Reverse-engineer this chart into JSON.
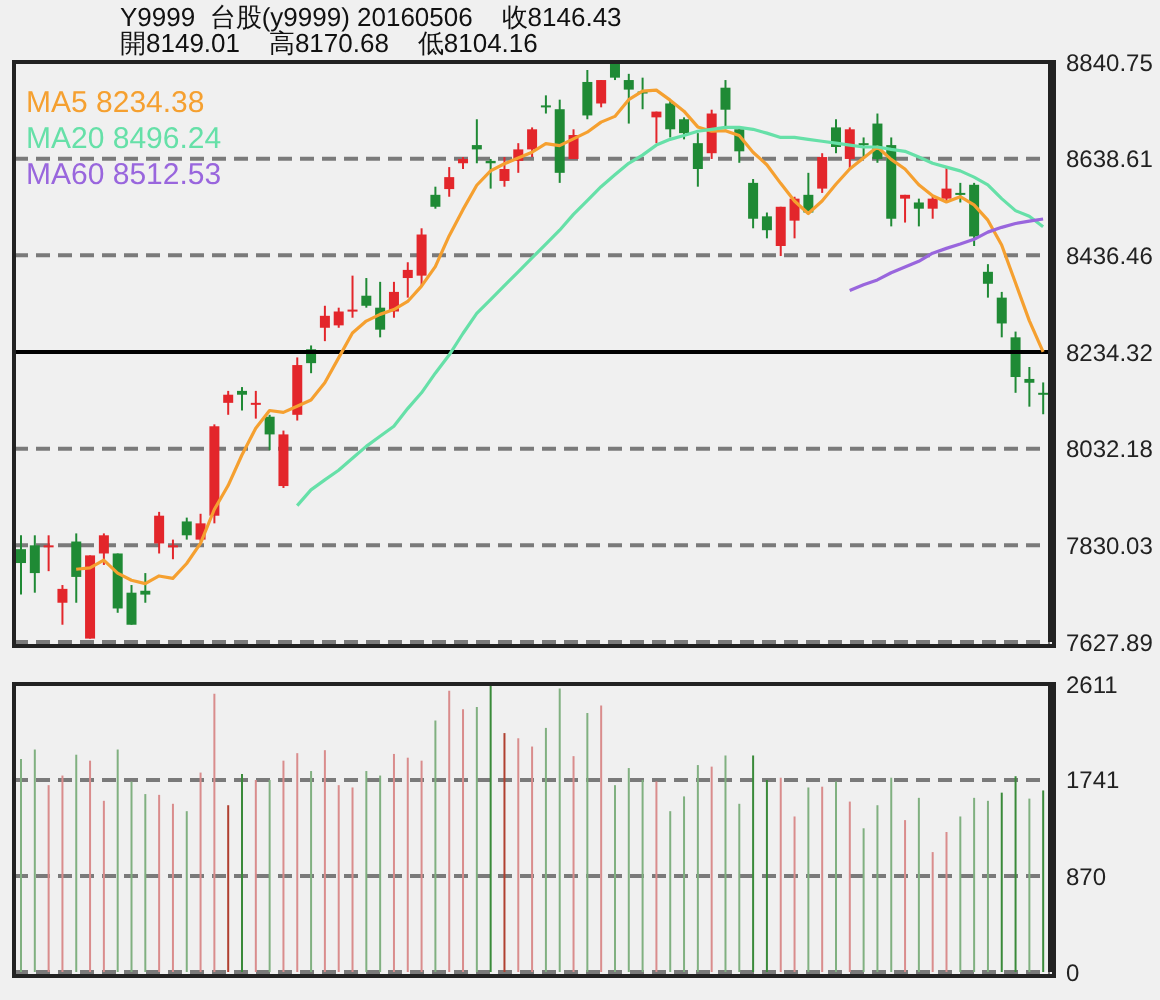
{
  "chart_data": [
    {
      "type": "candlestick",
      "title": "Y9999  台股(y9999) 20160506    收8146.43",
      "subtitle": "開8149.01    高8170.68    低8104.16",
      "categories": [
        null,
        null,
        null,
        null,
        null,
        null,
        null,
        null,
        null,
        null,
        null,
        null,
        null,
        null,
        null,
        null,
        null,
        null,
        null,
        null,
        null,
        null,
        null,
        null,
        null,
        null,
        null,
        null,
        null,
        null,
        null,
        null,
        null,
        null,
        null,
        null,
        null,
        null,
        null,
        null,
        null,
        null,
        null,
        null,
        null,
        null,
        null,
        null,
        null,
        null,
        null,
        null,
        null,
        null,
        null,
        null,
        null,
        null,
        null,
        null,
        null,
        null,
        null,
        null,
        null,
        null,
        null,
        null,
        null,
        null,
        null,
        null,
        null,
        null,
        null
      ],
      "ohlc": [
        [
          7822,
          7851,
          7727,
          7793
        ],
        [
          7830,
          7851,
          7731,
          7772
        ],
        [
          7826,
          7851,
          7776,
          7830
        ],
        [
          7710,
          7747,
          7664,
          7739
        ],
        [
          7838,
          7855,
          7710,
          7764
        ],
        [
          7635,
          7809,
          7635,
          7809
        ],
        [
          7813,
          7855,
          7789,
          7851
        ],
        [
          7813,
          7813,
          7689,
          7698
        ],
        [
          7731,
          7747,
          7664,
          7664
        ],
        [
          7735,
          7772,
          7710,
          7727
        ],
        [
          7834,
          7900,
          7813,
          7892
        ],
        [
          7826,
          7842,
          7801,
          7830
        ],
        [
          7880,
          7888,
          7842,
          7851
        ],
        [
          7842,
          7896,
          7838,
          7876
        ],
        [
          7892,
          8083,
          7876,
          8079
        ],
        [
          8128,
          8153,
          8103,
          8145
        ],
        [
          8153,
          8161,
          8112,
          8145
        ],
        [
          8124,
          8153,
          8095,
          8128
        ],
        [
          8099,
          8103,
          8029,
          8062
        ],
        [
          7954,
          8070,
          7950,
          8062
        ],
        [
          8103,
          8223,
          8091,
          8207
        ],
        [
          8240,
          8248,
          8190,
          8211
        ],
        [
          8285,
          8331,
          8257,
          8310
        ],
        [
          8290,
          8327,
          8285,
          8319
        ],
        [
          8319,
          8394,
          8306,
          8323
        ],
        [
          8352,
          8389,
          8327,
          8331
        ],
        [
          8327,
          8381,
          8265,
          8281
        ],
        [
          8319,
          8381,
          8306,
          8360
        ],
        [
          8389,
          8422,
          8348,
          8406
        ],
        [
          8394,
          8493,
          8373,
          8480
        ],
        [
          8563,
          8580,
          8534,
          8538
        ],
        [
          8575,
          8621,
          8559,
          8600
        ],
        [
          8629,
          8642,
          8617,
          8638
        ],
        [
          8667,
          8721,
          8629,
          8658
        ],
        [
          8634,
          8638,
          8576,
          8629
        ],
        [
          8592,
          8642,
          8580,
          8617
        ],
        [
          8634,
          8671,
          8609,
          8658
        ],
        [
          8658,
          8704,
          8642,
          8700
        ],
        [
          8750,
          8771,
          8733,
          8746
        ],
        [
          8742,
          8762,
          8588,
          8609
        ],
        [
          8638,
          8700,
          8638,
          8688
        ],
        [
          8799,
          8824,
          8721,
          8729
        ],
        [
          8754,
          8803,
          8746,
          8803
        ],
        [
          8837,
          8838,
          8803,
          8808
        ],
        [
          8803,
          8816,
          8712,
          8783
        ],
        [
          8779,
          8808,
          8742,
          8775
        ],
        [
          8725,
          8737,
          8671,
          8737
        ],
        [
          8754,
          8762,
          8683,
          8700
        ],
        [
          8721,
          8725,
          8679,
          8692
        ],
        [
          8671,
          8692,
          8580,
          8617
        ],
        [
          8650,
          8741,
          8638,
          8733
        ],
        [
          8787,
          8803,
          8700,
          8741
        ],
        [
          8700,
          8700,
          8630,
          8654
        ],
        [
          8588,
          8596,
          8493,
          8513
        ],
        [
          8518,
          8526,
          8472,
          8489
        ],
        [
          8456,
          8538,
          8435,
          8538
        ],
        [
          8509,
          8559,
          8472,
          8555
        ],
        [
          8563,
          8609,
          8526,
          8526
        ],
        [
          8576,
          8650,
          8567,
          8642
        ],
        [
          8704,
          8721,
          8650,
          8663
        ],
        [
          8638,
          8704,
          8617,
          8700
        ],
        [
          8671,
          8683,
          8642,
          8667
        ],
        [
          8712,
          8733,
          8630,
          8638
        ],
        [
          8667,
          8683,
          8497,
          8513
        ],
        [
          8555,
          8563,
          8505,
          8563
        ],
        [
          8547,
          8555,
          8497,
          8534
        ],
        [
          8534,
          8559,
          8513,
          8555
        ],
        [
          8555,
          8621,
          8547,
          8576
        ],
        [
          8567,
          8588,
          8547,
          8563
        ],
        [
          8584,
          8588,
          8456,
          8476
        ],
        [
          8402,
          8418,
          8348,
          8377
        ],
        [
          8348,
          8360,
          8265,
          8294
        ],
        [
          8265,
          8277,
          8149,
          8182
        ],
        [
          8178,
          8203,
          8120,
          8170
        ],
        [
          8149.01,
          8170.68,
          8104.16,
          8146.43
        ]
      ],
      "colors": [
        "#1f8a35",
        "#1f8a35",
        "#e3262b",
        "#e3262b",
        "#1f8a35",
        "#e3262b",
        "#e3262b",
        "#1f8a35",
        "#1f8a35",
        "#1f8a35",
        "#e3262b",
        "#e3262b",
        "#1f8a35",
        "#e3262b",
        "#e3262b",
        "#e3262b",
        "#1f8a35",
        "#e3262b",
        "#1f8a35",
        "#e3262b",
        "#e3262b",
        "#1f8a35",
        "#e3262b",
        "#e3262b",
        "#e3262b",
        "#1f8a35",
        "#1f8a35",
        "#e3262b",
        "#e3262b",
        "#e3262b",
        "#1f8a35",
        "#e3262b",
        "#e3262b",
        "#1f8a35",
        "#1f8a35",
        "#e3262b",
        "#e3262b",
        "#e3262b",
        "#1f8a35",
        "#1f8a35",
        "#e3262b",
        "#1f8a35",
        "#e3262b",
        "#1f8a35",
        "#1f8a35",
        "#1f8a35",
        "#e3262b",
        "#1f8a35",
        "#1f8a35",
        "#1f8a35",
        "#e3262b",
        "#1f8a35",
        "#1f8a35",
        "#1f8a35",
        "#1f8a35",
        "#e3262b",
        "#e3262b",
        "#1f8a35",
        "#e3262b",
        "#1f8a35",
        "#e3262b",
        "#1f8a35",
        "#1f8a35",
        "#1f8a35",
        "#e3262b",
        "#1f8a35",
        "#e3262b",
        "#e3262b",
        "#1f8a35",
        "#1f8a35",
        "#1f8a35",
        "#1f8a35",
        "#1f8a35",
        "#1f8a35",
        "#1f8a35"
      ],
      "series": [
        {
          "name": "MA5 8234.38",
          "type": "line",
          "color": "#f5a030",
          "values": [
            null,
            null,
            null,
            null,
            7780,
            7783,
            7799,
            7772,
            7757,
            7750,
            7766,
            7761,
            7792,
            7834,
            7905,
            7955,
            8019,
            8075,
            8112,
            8108,
            8121,
            8134,
            8170,
            8222,
            8274,
            8299,
            8313,
            8323,
            8340,
            8372,
            8413,
            8477,
            8532,
            8583,
            8613,
            8628,
            8640,
            8652,
            8670,
            8666,
            8680,
            8694,
            8715,
            8727,
            8762,
            8780,
            8782,
            8761,
            8738,
            8705,
            8696,
            8697,
            8687,
            8652,
            8626,
            8587,
            8550,
            8524,
            8550,
            8585,
            8617,
            8640,
            8663,
            8637,
            8617,
            8584,
            8561,
            8548,
            8559,
            8542,
            8510,
            8458,
            8379,
            8300,
            8234.38
          ]
        },
        {
          "name": "MA20 8496.24",
          "type": "line",
          "color": "#66e0a8",
          "values": [
            null,
            null,
            null,
            null,
            null,
            null,
            null,
            null,
            null,
            null,
            null,
            null,
            null,
            null,
            null,
            null,
            null,
            null,
            null,
            null,
            7913,
            7946,
            7967,
            7987,
            8012,
            8037,
            8058,
            8079,
            8116,
            8149,
            8190,
            8228,
            8273,
            8315,
            8344,
            8373,
            8402,
            8431,
            8460,
            8489,
            8522,
            8551,
            8580,
            8605,
            8629,
            8646,
            8667,
            8679,
            8687,
            8696,
            8700,
            8704,
            8704,
            8700,
            8692,
            8683,
            8683,
            8679,
            8675,
            8671,
            8667,
            8663,
            8663,
            8658,
            8654,
            8642,
            8629,
            8621,
            8613,
            8600,
            8584,
            8555,
            8530,
            8518,
            8496.24
          ]
        },
        {
          "name": "MA60 8512.53",
          "type": "line",
          "color": "#9966dd",
          "values": [
            null,
            null,
            null,
            null,
            null,
            null,
            null,
            null,
            null,
            null,
            null,
            null,
            null,
            null,
            null,
            null,
            null,
            null,
            null,
            null,
            null,
            null,
            null,
            null,
            null,
            null,
            null,
            null,
            null,
            null,
            null,
            null,
            null,
            null,
            null,
            null,
            null,
            null,
            null,
            null,
            null,
            null,
            null,
            null,
            null,
            null,
            null,
            null,
            null,
            null,
            null,
            null,
            null,
            null,
            null,
            null,
            null,
            null,
            null,
            null,
            8363,
            8375,
            8385,
            8400,
            8412,
            8424,
            8441,
            8451,
            8460,
            8470,
            8485,
            8495,
            8503,
            8508,
            8512.53
          ]
        }
      ],
      "ylim": [
        7627.89,
        8840.75
      ],
      "yticks": [
        7627.89,
        7830.03,
        8032.18,
        8234.32,
        8436.46,
        8638.61,
        8840.75
      ],
      "grid": "y",
      "ref_lines": [
        {
          "axis": "y",
          "value": 8234.32,
          "color": "#000000"
        }
      ],
      "legend": "top left",
      "tick_labels": "y"
    },
    {
      "type": "bar",
      "categories": [
        null,
        null,
        null,
        null,
        null,
        null,
        null,
        null,
        null,
        null,
        null,
        null,
        null,
        null,
        null,
        null,
        null,
        null,
        null,
        null,
        null,
        null,
        null,
        null,
        null,
        null,
        null,
        null,
        null,
        null,
        null,
        null,
        null,
        null,
        null,
        null,
        null,
        null,
        null,
        null,
        null,
        null,
        null,
        null,
        null,
        null,
        null,
        null,
        null,
        null,
        null,
        null,
        null,
        null,
        null,
        null,
        null,
        null,
        null,
        null,
        null,
        null,
        null,
        null,
        null,
        null,
        null,
        null,
        null,
        null,
        null,
        null,
        null,
        null,
        null
      ],
      "values": [
        1930,
        2017,
        1694,
        1781,
        1970,
        1916,
        1552,
        2017,
        1727,
        1613,
        1606,
        1525,
        1458,
        1808,
        2523,
        1512,
        1795,
        1741,
        1741,
        1916,
        1984,
        1822,
        2011,
        1694,
        1673,
        1822,
        1781,
        1977,
        1943,
        1916,
        2280,
        2550,
        2382,
        2402,
        2611,
        2166,
        2119,
        2044,
        2213,
        2570,
        1957,
        2348,
        2415,
        1694,
        1849,
        1741,
        1727,
        1458,
        1592,
        1876,
        1862,
        1963,
        1525,
        1963,
        1741,
        1761,
        1410,
        1673,
        1680,
        1727,
        1545,
        1303,
        1512,
        1761,
        1377,
        1579,
        1087,
        1269,
        1410,
        1579,
        1552,
        1626,
        1775,
        1572,
        1646
      ],
      "colors": [
        "#80b080",
        "#80b080",
        "#d98c8c",
        "#d98c8c",
        "#80b080",
        "#d98c8c",
        "#d98c8c",
        "#80b080",
        "#80b080",
        "#80b080",
        "#d98c8c",
        "#d98c8c",
        "#80b080",
        "#d98c8c",
        "#d98c8c",
        "#b04030",
        "#3a8a3a",
        "#d98c8c",
        "#80b080",
        "#d98c8c",
        "#d98c8c",
        "#80b080",
        "#d98c8c",
        "#d98c8c",
        "#d98c8c",
        "#80b080",
        "#80b080",
        "#d98c8c",
        "#d98c8c",
        "#d98c8c",
        "#80b080",
        "#d98c8c",
        "#d98c8c",
        "#80b080",
        "#3a8a3a",
        "#b04030",
        "#d98c8c",
        "#d98c8c",
        "#80b080",
        "#80b080",
        "#d98c8c",
        "#80b080",
        "#d98c8c",
        "#80b080",
        "#80b080",
        "#80b080",
        "#d98c8c",
        "#80b080",
        "#80b080",
        "#80b080",
        "#d98c8c",
        "#80b080",
        "#80b080",
        "#3a8a3a",
        "#3a8a3a",
        "#d98c8c",
        "#d98c8c",
        "#80b080",
        "#d98c8c",
        "#80b080",
        "#d98c8c",
        "#80b080",
        "#80b080",
        "#80b080",
        "#d98c8c",
        "#80b080",
        "#d98c8c",
        "#d98c8c",
        "#80b080",
        "#80b080",
        "#80b080",
        "#3a8a3a",
        "#3a8a3a",
        "#80b080",
        "#3a8a3a"
      ],
      "ylim": [
        0,
        2611
      ],
      "yticks": [
        0,
        870,
        1741,
        2611
      ],
      "grid": "y",
      "tick_labels": "y"
    }
  ]
}
